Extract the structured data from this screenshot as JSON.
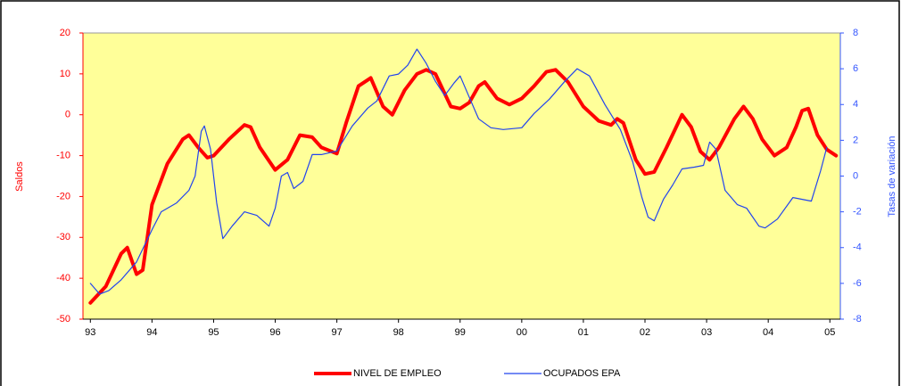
{
  "chart_data": {
    "type": "line",
    "y_label": "Saldos",
    "y2_label": "Tasas de variación",
    "xlim": [
      1992.88,
      2005.17
    ],
    "xticks": [
      {
        "value": 1993,
        "label": "93"
      },
      {
        "value": 1994,
        "label": "94"
      },
      {
        "value": 1995,
        "label": "95"
      },
      {
        "value": 1996,
        "label": "96"
      },
      {
        "value": 1997,
        "label": "97"
      },
      {
        "value": 1998,
        "label": "98"
      },
      {
        "value": 1999,
        "label": "99"
      },
      {
        "value": 2000,
        "label": "00"
      },
      {
        "value": 2001,
        "label": "01"
      },
      {
        "value": 2002,
        "label": "02"
      },
      {
        "value": 2003,
        "label": "03"
      },
      {
        "value": 2004,
        "label": "04"
      },
      {
        "value": 2005,
        "label": "05"
      }
    ],
    "ylim": [
      -50,
      20
    ],
    "yticks": [
      -50,
      -40,
      -30,
      -20,
      -10,
      0,
      10,
      20
    ],
    "y2lim": [
      -8,
      8
    ],
    "y2ticks": [
      -8,
      -6,
      -4,
      -2,
      0,
      2,
      4,
      6,
      8
    ],
    "y_color": "#ff0000",
    "y2_color": "#3355ff",
    "background": "#ffff99",
    "legend": "bottom",
    "series": [
      {
        "name": "NIVEL DE EMPLEO",
        "color": "#ff0000",
        "width": 4,
        "x": [
          1993.0,
          1993.25,
          1993.5,
          1993.6,
          1993.75,
          1993.85,
          1994.0,
          1994.25,
          1994.5,
          1994.6,
          1994.75,
          1994.9,
          1995.0,
          1995.25,
          1995.5,
          1995.6,
          1995.75,
          1996.0,
          1996.2,
          1996.4,
          1996.6,
          1996.75,
          1997.0,
          1997.15,
          1997.35,
          1997.55,
          1997.75,
          1997.9,
          1998.1,
          1998.3,
          1998.45,
          1998.6,
          1998.85,
          1999.0,
          1999.15,
          1999.3,
          1999.4,
          1999.6,
          1999.8,
          2000.0,
          2000.2,
          2000.4,
          2000.55,
          2000.75,
          2001.0,
          2001.25,
          2001.45,
          2001.55,
          2001.65,
          2001.85,
          2002.0,
          2002.15,
          2002.35,
          2002.6,
          2002.75,
          2002.9,
          2003.05,
          2003.2,
          2003.45,
          2003.6,
          2003.75,
          2003.9,
          2004.1,
          2004.3,
          2004.45,
          2004.55,
          2004.65,
          2004.8,
          2004.95,
          2005.1
        ],
        "values": [
          -46,
          -42,
          -34,
          -32.5,
          -39,
          -38,
          -22,
          -12,
          -6,
          -5,
          -8,
          -10.5,
          -10,
          -6,
          -2.5,
          -3,
          -8,
          -13.5,
          -11,
          -5,
          -5.5,
          -8,
          -9.5,
          -2,
          7,
          9,
          2,
          0,
          6,
          10,
          11,
          10,
          2,
          1.5,
          3,
          7,
          8,
          4,
          2.5,
          4,
          7,
          10.5,
          11,
          8,
          2,
          -1.5,
          -2.5,
          -1,
          -2,
          -11,
          -14.5,
          -14,
          -8,
          0,
          -3,
          -9,
          -11,
          -8,
          -1,
          2,
          -1,
          -6,
          -10,
          -8,
          -3,
          1,
          1.5,
          -5,
          -8.5,
          -10
        ]
      },
      {
        "name": "OCUPADOS EPA",
        "color": "#2244ee",
        "width": 1.2,
        "axis": "y2",
        "x": [
          1993.0,
          1993.15,
          1993.3,
          1993.5,
          1993.75,
          1994.0,
          1994.15,
          1994.4,
          1994.6,
          1994.7,
          1994.8,
          1994.85,
          1994.95,
          1995.05,
          1995.15,
          1995.3,
          1995.5,
          1995.7,
          1995.9,
          1996.0,
          1996.1,
          1996.2,
          1996.3,
          1996.45,
          1996.6,
          1996.75,
          1997.0,
          1997.25,
          1997.5,
          1997.65,
          1997.85,
          1998.0,
          1998.15,
          1998.3,
          1998.45,
          1998.6,
          1998.75,
          1998.9,
          1999.0,
          1999.15,
          1999.3,
          1999.5,
          1999.7,
          2000.0,
          2000.2,
          2000.45,
          2000.7,
          2000.9,
          2001.1,
          2001.35,
          2001.6,
          2001.8,
          2001.95,
          2002.05,
          2002.15,
          2002.3,
          2002.45,
          2002.6,
          2002.8,
          2002.95,
          2003.05,
          2003.15,
          2003.3,
          2003.5,
          2003.65,
          2003.85,
          2003.95,
          2004.15,
          2004.4,
          2004.55,
          2004.7,
          2004.85,
          2004.95
        ],
        "values": [
          -6,
          -6.6,
          -6.4,
          -5.8,
          -4.8,
          -3,
          -2,
          -1.5,
          -0.8,
          0,
          2.5,
          2.8,
          1.5,
          -1.5,
          -3.5,
          -2.8,
          -2,
          -2.2,
          -2.8,
          -1.8,
          0,
          0.2,
          -0.7,
          -0.3,
          1.2,
          1.2,
          1.4,
          2.8,
          3.8,
          4.2,
          5.6,
          5.7,
          6.2,
          7.1,
          6.3,
          5.3,
          4.5,
          5.2,
          5.6,
          4.4,
          3.2,
          2.7,
          2.6,
          2.7,
          3.5,
          4.3,
          5.3,
          6,
          5.6,
          4,
          2.6,
          0.8,
          -1.2,
          -2.3,
          -2.5,
          -1.3,
          -0.5,
          0.4,
          0.5,
          0.6,
          1.9,
          1.5,
          -0.8,
          -1.6,
          -1.8,
          -2.8,
          -2.9,
          -2.4,
          -1.2,
          -1.3,
          -1.4,
          0.3,
          1.6
        ]
      }
    ]
  }
}
